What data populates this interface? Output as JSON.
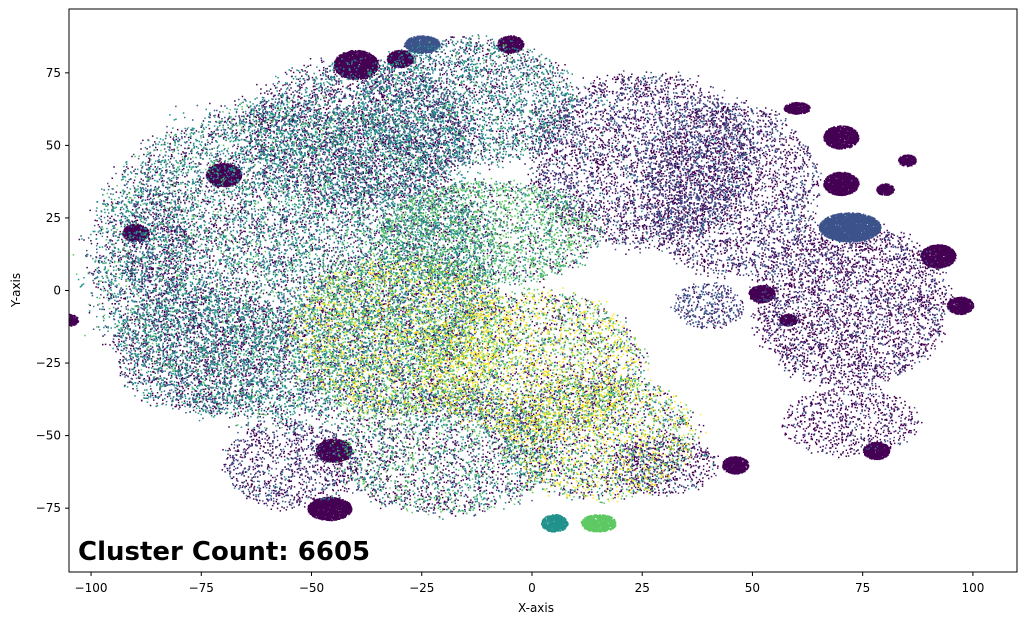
{
  "chart_data": {
    "type": "scatter",
    "title": "",
    "xlabel": "X-axis",
    "ylabel": "Y-axis",
    "xlim": [
      -105,
      110
    ],
    "ylim": [
      -97,
      97
    ],
    "xticks": [
      -100,
      -75,
      -50,
      -25,
      0,
      25,
      50,
      75,
      100
    ],
    "yticks": [
      -75,
      -50,
      -25,
      0,
      25,
      50,
      75
    ],
    "xtick_labels": [
      "−100",
      "−75",
      "−50",
      "−25",
      "0",
      "25",
      "50",
      "75",
      "100"
    ],
    "ytick_labels": [
      "−75",
      "−50",
      "−25",
      "0",
      "25",
      "50",
      "75"
    ],
    "grid": false,
    "legend": "none",
    "colormap": "viridis",
    "colors": [
      "#440154",
      "#3b528b",
      "#21918c",
      "#5ec962",
      "#fde725"
    ],
    "marker_size_pt": 1.5,
    "annotation": "Cluster Count: 6605",
    "annotation_placement": "bottom-left",
    "regions": [
      {
        "cx": -55,
        "cy": 10,
        "rx": 45,
        "ry": 55,
        "weights": [
          0.3,
          0.15,
          0.45,
          0.1,
          0.0
        ],
        "density": 1.0
      },
      {
        "cx": -40,
        "cy": 55,
        "rx": 25,
        "ry": 25,
        "weights": [
          0.5,
          0.2,
          0.3,
          0.0,
          0.0
        ],
        "density": 0.9
      },
      {
        "cx": -15,
        "cy": 65,
        "rx": 25,
        "ry": 22,
        "weights": [
          0.3,
          0.2,
          0.45,
          0.05,
          0.0
        ],
        "density": 1.0
      },
      {
        "cx": -10,
        "cy": 20,
        "rx": 25,
        "ry": 18,
        "weights": [
          0.2,
          0.05,
          0.3,
          0.45,
          0.0
        ],
        "density": 1.0
      },
      {
        "cx": -30,
        "cy": -15,
        "rx": 25,
        "ry": 28,
        "weights": [
          0.15,
          0.05,
          0.15,
          0.35,
          0.3
        ],
        "density": 1.0
      },
      {
        "cx": 0,
        "cy": -25,
        "rx": 25,
        "ry": 25,
        "weights": [
          0.25,
          0.05,
          0.1,
          0.3,
          0.3
        ],
        "density": 1.0
      },
      {
        "cx": 15,
        "cy": -50,
        "rx": 22,
        "ry": 22,
        "weights": [
          0.3,
          0.05,
          0.15,
          0.25,
          0.25
        ],
        "density": 1.0
      },
      {
        "cx": -20,
        "cy": -55,
        "rx": 25,
        "ry": 22,
        "weights": [
          0.4,
          0.15,
          0.25,
          0.2,
          0.0
        ],
        "density": 0.9
      },
      {
        "cx": -55,
        "cy": -60,
        "rx": 15,
        "ry": 15,
        "weights": [
          0.6,
          0.35,
          0.05,
          0.0,
          0.0
        ],
        "density": 0.8
      },
      {
        "cx": -75,
        "cy": -20,
        "rx": 20,
        "ry": 22,
        "weights": [
          0.45,
          0.2,
          0.35,
          0.0,
          0.0
        ],
        "density": 0.8
      },
      {
        "cx": 25,
        "cy": 45,
        "rx": 25,
        "ry": 30,
        "weights": [
          0.6,
          0.35,
          0.05,
          0.0,
          0.0
        ],
        "density": 0.9
      },
      {
        "cx": 45,
        "cy": 35,
        "rx": 20,
        "ry": 30,
        "weights": [
          0.6,
          0.4,
          0.0,
          0.0,
          0.0
        ],
        "density": 0.8
      },
      {
        "cx": 40,
        "cy": -5,
        "rx": 8,
        "ry": 8,
        "weights": [
          0.3,
          0.7,
          0.0,
          0.0,
          0.0
        ],
        "density": 1.0
      },
      {
        "cx": 72,
        "cy": -5,
        "rx": 22,
        "ry": 28,
        "weights": [
          0.75,
          0.25,
          0.0,
          0.0,
          0.0
        ],
        "density": 1.0
      },
      {
        "cx": 72,
        "cy": -45,
        "rx": 15,
        "ry": 12,
        "weights": [
          0.8,
          0.2,
          0.0,
          0.0,
          0.0
        ],
        "density": 0.7
      },
      {
        "cx": 30,
        "cy": -60,
        "rx": 12,
        "ry": 10,
        "weights": [
          0.7,
          0.2,
          0.1,
          0.0,
          0.0
        ],
        "density": 0.8
      },
      {
        "cx": -85,
        "cy": 15,
        "rx": 8,
        "ry": 20,
        "weights": [
          0.6,
          0.3,
          0.1,
          0.0,
          0.0
        ],
        "density": 0.6
      }
    ],
    "clusters": [
      {
        "x": -40,
        "y": 78,
        "rx": 5,
        "ry": 5,
        "color": 0
      },
      {
        "x": -30,
        "y": 80,
        "rx": 3,
        "ry": 3,
        "color": 0
      },
      {
        "x": -25,
        "y": 85,
        "rx": 4,
        "ry": 3,
        "color": 1
      },
      {
        "x": -5,
        "y": 85,
        "rx": 3,
        "ry": 3,
        "color": 0
      },
      {
        "x": 60,
        "y": 63,
        "rx": 3,
        "ry": 2,
        "color": 0
      },
      {
        "x": 70,
        "y": 53,
        "rx": 4,
        "ry": 4,
        "color": 0
      },
      {
        "x": 70,
        "y": 37,
        "rx": 4,
        "ry": 4,
        "color": 0
      },
      {
        "x": 72,
        "y": 22,
        "rx": 7,
        "ry": 5,
        "color": 1
      },
      {
        "x": 92,
        "y": 12,
        "rx": 4,
        "ry": 4,
        "color": 0
      },
      {
        "x": 97,
        "y": -5,
        "rx": 3,
        "ry": 3,
        "color": 0
      },
      {
        "x": 52,
        "y": -1,
        "rx": 3,
        "ry": 3,
        "color": 0
      },
      {
        "x": 46,
        "y": -60,
        "rx": 3,
        "ry": 3,
        "color": 0
      },
      {
        "x": 78,
        "y": -55,
        "rx": 3,
        "ry": 3,
        "color": 0
      },
      {
        "x": -46,
        "y": -75,
        "rx": 5,
        "ry": 4,
        "color": 0
      },
      {
        "x": -105,
        "y": -10,
        "rx": 2,
        "ry": 2,
        "color": 0
      },
      {
        "x": -90,
        "y": 20,
        "rx": 3,
        "ry": 3,
        "color": 0
      },
      {
        "x": -70,
        "y": 40,
        "rx": 4,
        "ry": 4,
        "color": 0
      },
      {
        "x": -45,
        "y": -55,
        "rx": 4,
        "ry": 4,
        "color": 0
      },
      {
        "x": 15,
        "y": -80,
        "rx": 4,
        "ry": 3,
        "color": 3
      },
      {
        "x": 5,
        "y": -80,
        "rx": 3,
        "ry": 3,
        "color": 2
      },
      {
        "x": 80,
        "y": 35,
        "rx": 2,
        "ry": 2,
        "color": 0
      },
      {
        "x": 85,
        "y": 45,
        "rx": 2,
        "ry": 2,
        "color": 0
      },
      {
        "x": 58,
        "y": -10,
        "rx": 2,
        "ry": 2,
        "color": 0
      }
    ],
    "point_budget": 60000,
    "seed": 6605
  }
}
